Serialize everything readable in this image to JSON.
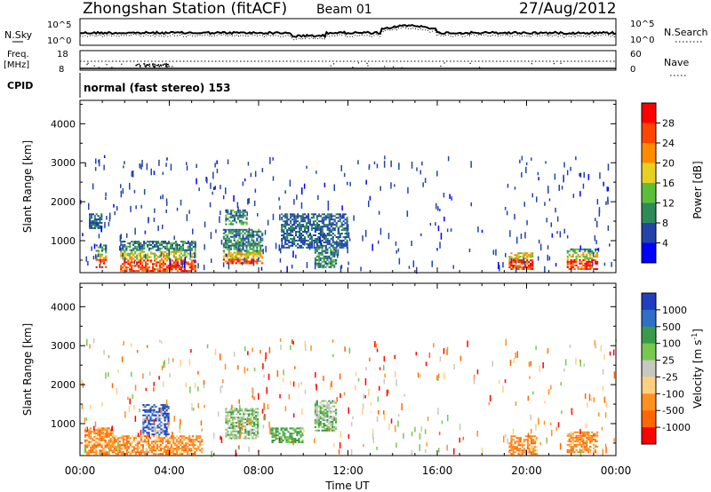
{
  "header": {
    "station": "Zhongshan Station (fitACF)",
    "beam": "Beam 01",
    "date": "27/Aug/2012"
  },
  "panels": {
    "nsky_label": "N.Sky",
    "nsky_ticks": [
      "10^5",
      "10^0"
    ],
    "nsearch_label": "N.Search",
    "nsearch_ticks": [
      "10^5",
      "10^0"
    ],
    "freq_label": "Freq.",
    "freq_unit": "[MHz]",
    "freq_ticks": [
      "18",
      "8"
    ],
    "nave_label": "Nave",
    "nave_ticks": [
      "60",
      "0"
    ],
    "cpid_label": "CPID",
    "cpid_text": "normal (fast stereo) 153"
  },
  "chart_data": [
    {
      "type": "heatmap",
      "name": "power",
      "ylabel": "Slant Range [km]",
      "xlabel": "",
      "yticks": [
        "1000",
        "2000",
        "3000",
        "4000"
      ],
      "ylim": [
        180,
        4600
      ],
      "xlim": [
        "00:00",
        "24:00"
      ],
      "colorbar": {
        "label": "Power [dB]",
        "ticks": [
          "4",
          "8",
          "12",
          "16",
          "20",
          "24",
          "28"
        ],
        "colors": [
          "#0000ff",
          "#2244aa",
          "#2e8b57",
          "#5cbf3a",
          "#e8d020",
          "#ff8c00",
          "#ff4500",
          "#ff0000"
        ]
      },
      "echo_regions": [
        {
          "t0": 0.7,
          "t1": 1.2,
          "r0": 300,
          "r1": 900,
          "level": "high"
        },
        {
          "t0": 0.4,
          "t1": 1.0,
          "r0": 1300,
          "r1": 1700,
          "level": "low"
        },
        {
          "t0": 1.8,
          "t1": 5.2,
          "r0": 200,
          "r1": 1000,
          "level": "high"
        },
        {
          "t0": 6.4,
          "t1": 8.2,
          "r0": 400,
          "r1": 1300,
          "level": "high"
        },
        {
          "t0": 6.5,
          "t1": 7.5,
          "r0": 1400,
          "r1": 1800,
          "level": "mid"
        },
        {
          "t0": 9.0,
          "t1": 12.0,
          "r0": 800,
          "r1": 1700,
          "level": "low"
        },
        {
          "t0": 10.5,
          "t1": 11.5,
          "r0": 300,
          "r1": 800,
          "level": "mid"
        },
        {
          "t0": 19.2,
          "t1": 20.3,
          "r0": 250,
          "r1": 700,
          "level": "high"
        },
        {
          "t0": 21.8,
          "t1": 23.2,
          "r0": 250,
          "r1": 800,
          "level": "high"
        }
      ]
    },
    {
      "type": "heatmap",
      "name": "velocity",
      "ylabel": "Slant Range [km]",
      "xlabel": "Time UT",
      "yticks": [
        "1000",
        "2000",
        "3000",
        "4000"
      ],
      "ylim": [
        180,
        4600
      ],
      "xlim": [
        "00:00",
        "24:00"
      ],
      "xticks": [
        "00:00",
        "04:00",
        "08:00",
        "12:00",
        "16:00",
        "20:00",
        "00:00"
      ],
      "colorbar": {
        "label": "Velocity [m s",
        "label_sup": "-1",
        "label_end": "]",
        "ticks": [
          "1000",
          "500",
          "100",
          "25",
          "-25",
          "-100",
          "-500",
          "-1000"
        ],
        "colors": [
          "#1f3fbf",
          "#2f6fc8",
          "#3a9a4a",
          "#78c850",
          "#c8c8c0",
          "#ffd080",
          "#ff9020",
          "#ff6600",
          "#ff0000"
        ]
      },
      "echo_regions": [
        {
          "t0": 0.2,
          "t1": 1.5,
          "r0": 200,
          "r1": 900,
          "level": "neg"
        },
        {
          "t0": 1.5,
          "t1": 5.5,
          "r0": 200,
          "r1": 700,
          "level": "neg"
        },
        {
          "t0": 2.8,
          "t1": 4.0,
          "r0": 700,
          "r1": 1500,
          "level": "pos"
        },
        {
          "t0": 6.5,
          "t1": 8.0,
          "r0": 600,
          "r1": 1400,
          "level": "zero"
        },
        {
          "t0": 8.5,
          "t1": 10.0,
          "r0": 500,
          "r1": 900,
          "level": "pos_small"
        },
        {
          "t0": 10.5,
          "t1": 11.5,
          "r0": 800,
          "r1": 1600,
          "level": "zero"
        },
        {
          "t0": 19.2,
          "t1": 20.5,
          "r0": 200,
          "r1": 700,
          "level": "neg"
        },
        {
          "t0": 21.8,
          "t1": 23.2,
          "r0": 250,
          "r1": 800,
          "level": "neg"
        }
      ]
    }
  ]
}
